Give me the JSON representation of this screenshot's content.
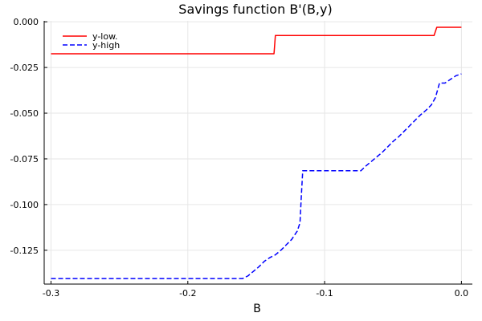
{
  "chart_data": {
    "type": "line",
    "title": "Savings function B'(B,y)",
    "xlabel": "B",
    "ylabel": "",
    "xlim": [
      -0.305,
      0.008
    ],
    "ylim": [
      -0.1435,
      0.0005
    ],
    "xticks": [
      -0.3,
      -0.2,
      -0.1,
      0.0
    ],
    "xtick_labels": [
      "-0.3",
      "-0.2",
      "-0.1",
      "0.0"
    ],
    "yticks": [
      0.0,
      -0.025,
      -0.05,
      -0.075,
      -0.1,
      -0.125
    ],
    "ytick_labels": [
      "0.000",
      "-0.025",
      "-0.050",
      "-0.075",
      "-0.100",
      "-0.125"
    ],
    "grid": true,
    "legend_position": "top-left",
    "series": [
      {
        "name": "y-low.",
        "color": "#ff0000",
        "dash": "solid",
        "x": [
          -0.3,
          -0.137,
          -0.136,
          -0.02,
          -0.018,
          0.0
        ],
        "y": [
          -0.0175,
          -0.0175,
          -0.0075,
          -0.0075,
          -0.003,
          -0.003
        ]
      },
      {
        "name": "y-high",
        "color": "#0000ff",
        "dash": "dashed",
        "x": [
          -0.3,
          -0.16,
          -0.156,
          -0.152,
          -0.148,
          -0.144,
          -0.14,
          -0.136,
          -0.132,
          -0.128,
          -0.124,
          -0.12,
          -0.118,
          -0.117,
          -0.116,
          -0.11,
          -0.1,
          -0.09,
          -0.0735,
          -0.07,
          -0.066,
          -0.062,
          -0.058,
          -0.054,
          -0.05,
          -0.046,
          -0.042,
          -0.038,
          -0.034,
          -0.03,
          -0.026,
          -0.022,
          -0.019,
          -0.016,
          -0.012,
          -0.008,
          -0.004,
          0.0
        ],
        "y": [
          -0.1405,
          -0.1405,
          -0.139,
          -0.1365,
          -0.134,
          -0.131,
          -0.129,
          -0.1275,
          -0.125,
          -0.122,
          -0.119,
          -0.1145,
          -0.11,
          -0.095,
          -0.0815,
          -0.0815,
          -0.0815,
          -0.0815,
          -0.0815,
          -0.079,
          -0.0765,
          -0.074,
          -0.0715,
          -0.0685,
          -0.0655,
          -0.063,
          -0.06,
          -0.057,
          -0.054,
          -0.051,
          -0.0485,
          -0.0455,
          -0.0415,
          -0.0335,
          -0.0335,
          -0.0315,
          -0.0295,
          -0.0285
        ]
      }
    ]
  }
}
